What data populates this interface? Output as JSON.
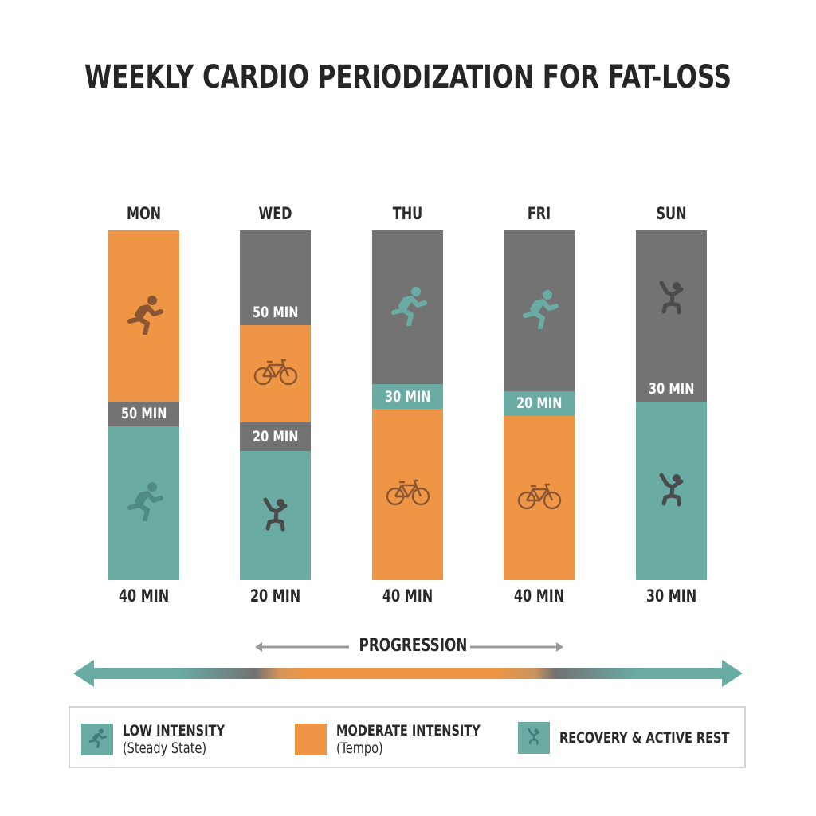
{
  "title": "WEEKLY CARDIO PERIODIZATION FOR FAT-LOSS",
  "colors": {
    "low": "#6aaba4",
    "moderate": "#ee9646",
    "gray": "#737373",
    "icon_dark": "#4a4a4a",
    "icon_brown": "#8a5530"
  },
  "chart_data": {
    "type": "bar",
    "subtype": "stacked-100",
    "title": "WEEKLY CARDIO PERIODIZATION FOR FAT-LOSS",
    "categories": [
      "MON",
      "WED",
      "THU",
      "FRI",
      "SUN"
    ],
    "totals": [
      "40 MIN",
      "20 MIN",
      "40 MIN",
      "40 MIN",
      "30 MIN"
    ],
    "columns": [
      {
        "day": "MON",
        "total": "40 MIN",
        "segments": [
          {
            "fill": "moderate",
            "pct": 49,
            "icon": "runner",
            "icon_color": "icon_brown"
          },
          {
            "fill": "gray",
            "pct": 7,
            "text": "50 MIN",
            "band": true
          },
          {
            "fill": "low",
            "pct": 44,
            "icon": "runner",
            "icon_color": "icon_teal_dark"
          }
        ]
      },
      {
        "day": "WED",
        "total": "20 MIN",
        "segments": [
          {
            "fill": "gray",
            "pct": 27,
            "text": "50 MIN"
          },
          {
            "fill": "moderate",
            "pct": 28,
            "icon": "bike",
            "icon_color": "icon_brown"
          },
          {
            "fill": "gray",
            "pct": 8,
            "text": "20 MIN",
            "band": true
          },
          {
            "fill": "low",
            "pct": 37,
            "icon": "jumper",
            "icon_color": "icon_dark"
          }
        ]
      },
      {
        "day": "THU",
        "total": "40 MIN",
        "segments": [
          {
            "fill": "gray",
            "pct": 44,
            "icon": "runner",
            "icon_color": "low"
          },
          {
            "fill": "low",
            "pct": 7,
            "text": "30 MIN",
            "band": true
          },
          {
            "fill": "moderate",
            "pct": 49,
            "icon": "bike",
            "icon_color": "icon_brown"
          }
        ]
      },
      {
        "day": "FRI",
        "total": "40 MIN",
        "segments": [
          {
            "fill": "gray",
            "pct": 46,
            "icon": "runner",
            "icon_color": "low"
          },
          {
            "fill": "low",
            "pct": 7,
            "text": "20 MIN",
            "band": true
          },
          {
            "fill": "moderate",
            "pct": 47,
            "icon": "bike",
            "icon_color": "icon_brown"
          }
        ]
      },
      {
        "day": "SUN",
        "total": "30 MIN",
        "segments": [
          {
            "fill": "gray",
            "pct": 49,
            "text": "30 MIN",
            "icon": "jumper",
            "icon_color": "icon_dark"
          },
          {
            "fill": "low",
            "pct": 51,
            "icon": "jumper",
            "icon_color": "icon_dark"
          }
        ]
      }
    ],
    "legend": "bottom"
  },
  "progression_label": "PROGRESSION",
  "legend": [
    {
      "fill": "low",
      "icon": "runner",
      "label": "LOW INTENSITY",
      "sub": "(Steady State)"
    },
    {
      "fill": "moderate",
      "icon": "",
      "label": "MODERATE INTENSITY",
      "sub": "(Tempo)"
    },
    {
      "fill": "low",
      "icon": "jumper",
      "label": "RECOVERY & ACTIVE REST",
      "sub": ""
    }
  ]
}
